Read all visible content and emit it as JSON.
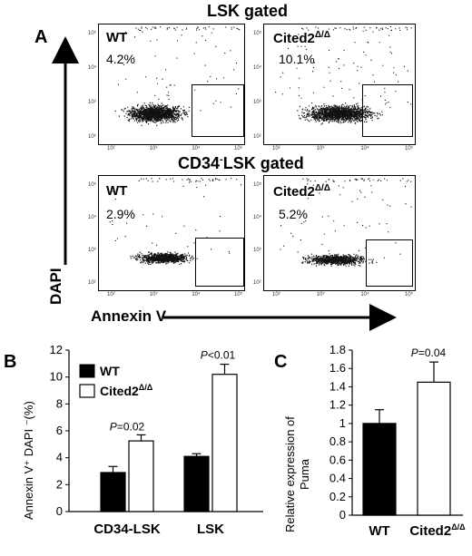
{
  "panel_letters": {
    "a": "A",
    "b": "B",
    "c": "C"
  },
  "flow": {
    "rows": [
      {
        "title": "LSK gated",
        "title_prefix": "",
        "title_sup": "",
        "title_suffix": "",
        "plots": [
          {
            "label": "WT",
            "sup": "",
            "percent": "4.2%"
          },
          {
            "label": "Cited2",
            "sup": "Δ/Δ",
            "percent": "10.1%"
          }
        ]
      },
      {
        "title": "",
        "title_prefix": "CD34",
        "title_sup": "-",
        "title_suffix": "LSK gated",
        "plots": [
          {
            "label": "WT",
            "sup": "",
            "percent": "2.9%"
          },
          {
            "label": "Cited2",
            "sup": "Δ/Δ",
            "percent": "5.2%"
          }
        ]
      }
    ],
    "x_ticks": [
      "10²",
      "10³",
      "10⁴",
      "10⁵"
    ],
    "y_ticks": [
      "10⁵",
      "10⁴",
      "10³",
      "10²"
    ],
    "y_axis_title": "DAPI",
    "x_axis_title": "Annexin V"
  },
  "chart_data": [
    {
      "type": "bar",
      "panel": "B",
      "categories": [
        "CD34-LSK",
        "LSK"
      ],
      "series": [
        {
          "name": "WT",
          "values": [
            2.9,
            4.1
          ],
          "errors": [
            0.45,
            0.2
          ],
          "color": "#000000"
        },
        {
          "name": "Cited2Δ/Δ",
          "values": [
            5.25,
            10.2
          ],
          "errors": [
            0.45,
            0.75
          ],
          "color": "#ffffff"
        }
      ],
      "annotations": [
        "P=0.02",
        "P<0.01"
      ],
      "ylabel": "Annexin V⁺ DAPI ⁻(%)",
      "yticks": [
        0,
        2,
        4,
        6,
        8,
        10,
        12
      ],
      "ylim": [
        0,
        12
      ],
      "legend": {
        "placement": "top-left",
        "wt_label": "WT",
        "cited_label": "Cited2",
        "cited_sup": "Δ/Δ"
      },
      "pvals": {
        "cd34": {
          "p": "P",
          "rest": "=0.02"
        },
        "lsk": {
          "p": "P",
          "rest": "<0.01"
        }
      }
    },
    {
      "type": "bar",
      "panel": "C",
      "categories": [
        "WT",
        "Cited2Δ/Δ"
      ],
      "values": [
        1.0,
        1.45
      ],
      "errors": [
        0.15,
        0.22
      ],
      "colors": [
        "#000000",
        "#ffffff"
      ],
      "annotations": [
        "P=0.04"
      ],
      "ylabel": "Relative expression of Puma",
      "ylabel_lines": [
        "Relative expression of",
        "Puma"
      ],
      "yticks": [
        0,
        0.2,
        0.4,
        0.6,
        0.8,
        1,
        1.2,
        1.4,
        1.6,
        1.8
      ],
      "ylim": [
        0,
        1.8
      ],
      "xlabels": {
        "wt": "WT",
        "cited": "Cited2",
        "cited_sup": "Δ/Δ"
      },
      "pval": {
        "p": "P",
        "rest": "=0.04"
      }
    }
  ]
}
